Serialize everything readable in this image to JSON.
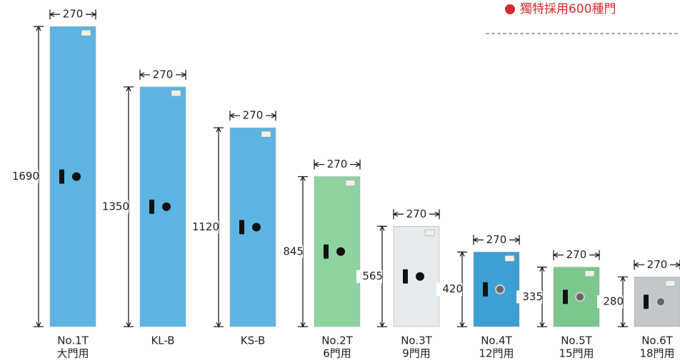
{
  "header": {
    "note": "獨特採用600種門"
  },
  "items": [
    {
      "name": "No.1T",
      "sub": "大門用",
      "height": 1690,
      "width": 270,
      "color": "#5db4e2"
    },
    {
      "name": "KL-B",
      "height": 1350,
      "width": 270,
      "color": "#5db4e2"
    },
    {
      "name": "KS-B",
      "height": 1120,
      "width": 270,
      "color": "#5db4e2"
    },
    {
      "name": "No.2T",
      "sub": "6門用",
      "height": 845,
      "width": 270,
      "color": "#8fd3a0"
    },
    {
      "name": "No.3T",
      "sub": "9門用",
      "height": 565,
      "width": 270,
      "color": "#e4eaed"
    },
    {
      "name": "No.4T",
      "sub": "12門用",
      "height": 420,
      "width": 270,
      "color": "#3d9fd2"
    },
    {
      "name": "No.5T",
      "sub": "15門用",
      "height": 335,
      "width": 270,
      "color": "#7cc78d"
    },
    {
      "name": "No.6T",
      "sub": "18門用",
      "height": 280,
      "width": 270,
      "color": "#c3c7cb"
    }
  ]
}
